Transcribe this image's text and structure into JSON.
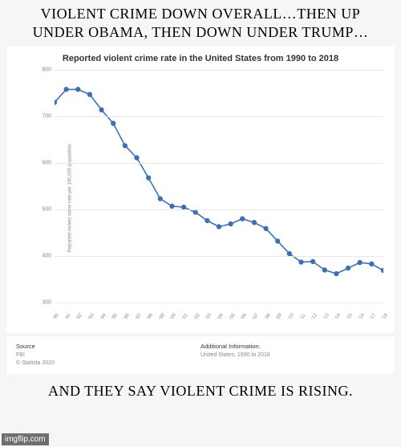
{
  "top_caption": "VIOLENT CRIME DOWN OVERALL…THEN UP UNDER OBAMA, THEN DOWN UNDER TRUMP…",
  "bottom_caption": "AND THEY SAY VIOLENT CRIME IS RISING.",
  "chart": {
    "type": "line",
    "title": "Reported violent crime rate in the United States from 1990 to 2018",
    "y_axis_label": "Reported violent crime rate per 100,000 population",
    "ylim": [
      300,
      800
    ],
    "ytick_step": 100,
    "categories": [
      "'90",
      "'91",
      "'92",
      "'93",
      "'94",
      "'95",
      "'96",
      "'97",
      "'98",
      "'99",
      "'00",
      "'01",
      "'02",
      "'03",
      "'04",
      "'05",
      "'06",
      "'07",
      "'08",
      "'09",
      "'10",
      "'11",
      "'12",
      "'13",
      "'14",
      "'15",
      "'16",
      "'17",
      "'18"
    ],
    "values": [
      730,
      758,
      758,
      747,
      714,
      685,
      637,
      611,
      568,
      523,
      507,
      505,
      494,
      476,
      463,
      469,
      480,
      472,
      459,
      432,
      405,
      387,
      388,
      370,
      362,
      374,
      386,
      383,
      369
    ],
    "line_color": "#3b6fb6",
    "marker_size": 3.2,
    "line_width": 1.6,
    "grid_color": "#e8e8e8",
    "background_color": "#ffffff",
    "tick_fontsize": 7,
    "title_fontsize": 11
  },
  "footer": {
    "source_hdr": "Source",
    "source_line1": "FBI",
    "source_line2": "© Statista 2020",
    "info_hdr": "Additional Information:",
    "info_line1": "United States; 1990 to 2018"
  },
  "watermark": "imgflip.com"
}
